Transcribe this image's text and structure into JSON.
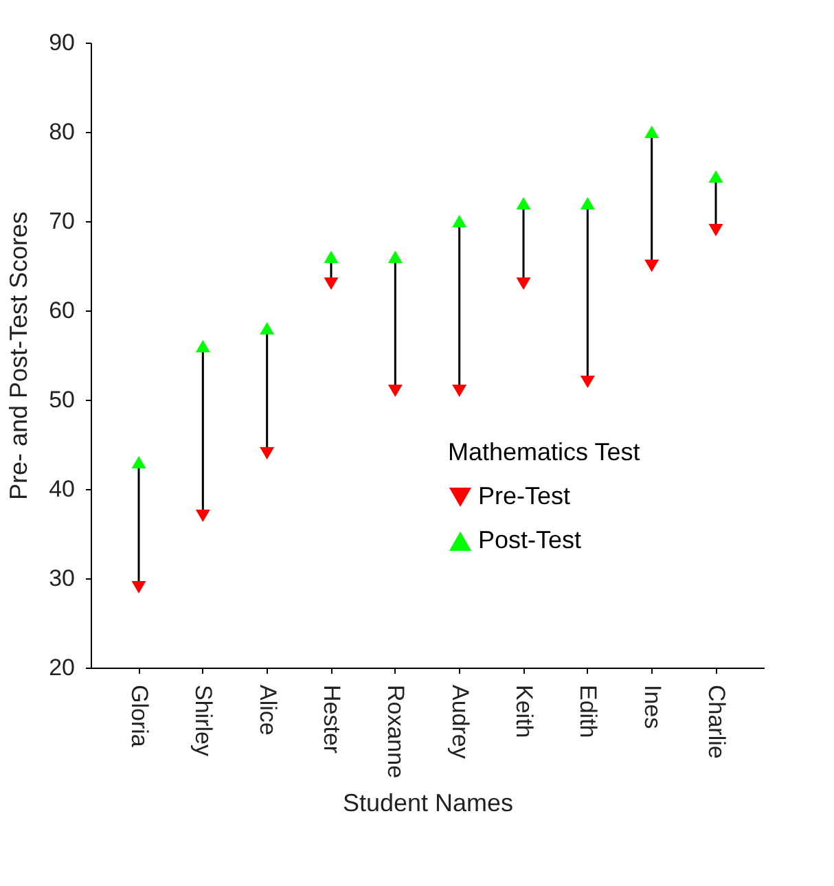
{
  "chart_data": {
    "type": "scatter",
    "xlabel": "Student Names",
    "ylabel": "Pre- and Post-Test Scores",
    "legend_title": "Mathematics Test",
    "categories": [
      "Gloria",
      "Shirley",
      "Alice",
      "Hester",
      "Roxanne",
      "Audrey",
      "Keith",
      "Edith",
      "Ines",
      "Charlie"
    ],
    "series": [
      {
        "name": "Pre-Test",
        "color": "#ff0000",
        "marker": "triangle-down",
        "values": [
          29,
          37,
          44,
          63,
          51,
          51,
          63,
          52,
          65,
          69
        ]
      },
      {
        "name": "Post-Test",
        "color": "#00ff00",
        "marker": "triangle",
        "values": [
          43,
          56,
          58,
          66,
          66,
          70,
          72,
          72,
          80,
          75
        ]
      }
    ],
    "ylim": [
      20,
      90
    ],
    "yticks": [
      20,
      30,
      40,
      50,
      60,
      70,
      80,
      90
    ],
    "grid": false,
    "legend": "bottom right"
  }
}
